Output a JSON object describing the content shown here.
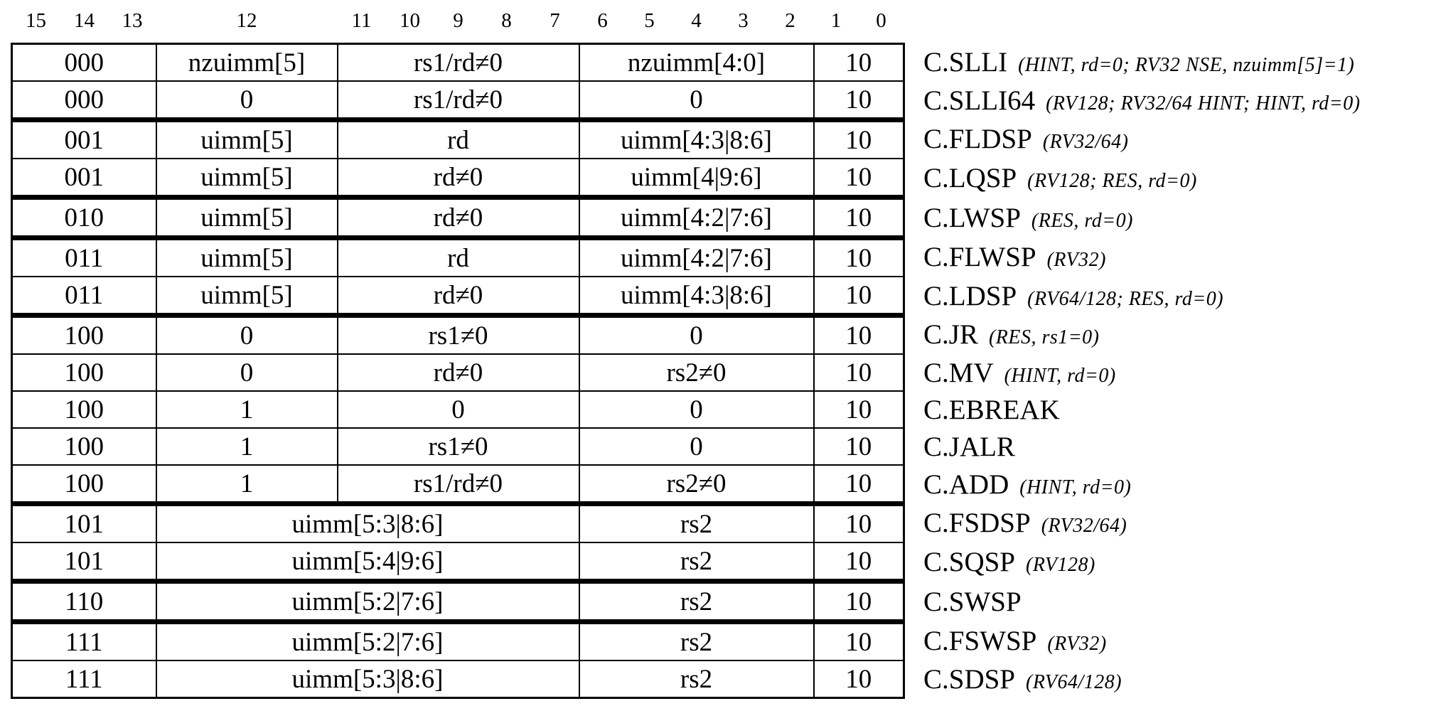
{
  "page": {
    "background": "#ffffff",
    "text_color": "#000000"
  },
  "bit_header": [
    "15",
    "14",
    "13",
    "12",
    "11",
    "10",
    "9",
    "8",
    "7",
    "6",
    "5",
    "4",
    "3",
    "2",
    "1",
    "0"
  ],
  "table": {
    "opcode_bits_label": "10",
    "rows": [
      {
        "thick_top": false,
        "cells": [
          {
            "span": 3,
            "text": "000"
          },
          {
            "span": 1,
            "text": "nzuimm[5]"
          },
          {
            "span": 5,
            "text": "rs1/rd≠0"
          },
          {
            "span": 5,
            "text": "nzuimm[4:0]"
          },
          {
            "span": 2,
            "text": "10"
          }
        ],
        "label": "C.SLLI",
        "note": "(HINT, rd=0; RV32 NSE, nzuimm[5]=1)"
      },
      {
        "thick_top": false,
        "cells": [
          {
            "span": 3,
            "text": "000"
          },
          {
            "span": 1,
            "text": "0"
          },
          {
            "span": 5,
            "text": "rs1/rd≠0"
          },
          {
            "span": 5,
            "text": "0"
          },
          {
            "span": 2,
            "text": "10"
          }
        ],
        "label": "C.SLLI64",
        "note": "(RV128; RV32/64 HINT; HINT, rd=0)"
      },
      {
        "thick_top": true,
        "cells": [
          {
            "span": 3,
            "text": "001"
          },
          {
            "span": 1,
            "text": "uimm[5]"
          },
          {
            "span": 5,
            "text": "rd"
          },
          {
            "span": 5,
            "text": "uimm[4:3|8:6]"
          },
          {
            "span": 2,
            "text": "10"
          }
        ],
        "label": "C.FLDSP",
        "note": "(RV32/64)"
      },
      {
        "thick_top": false,
        "cells": [
          {
            "span": 3,
            "text": "001"
          },
          {
            "span": 1,
            "text": "uimm[5]"
          },
          {
            "span": 5,
            "text": "rd≠0"
          },
          {
            "span": 5,
            "text": "uimm[4|9:6]"
          },
          {
            "span": 2,
            "text": "10"
          }
        ],
        "label": "C.LQSP",
        "note": "(RV128; RES, rd=0)"
      },
      {
        "thick_top": true,
        "cells": [
          {
            "span": 3,
            "text": "010"
          },
          {
            "span": 1,
            "text": "uimm[5]"
          },
          {
            "span": 5,
            "text": "rd≠0"
          },
          {
            "span": 5,
            "text": "uimm[4:2|7:6]"
          },
          {
            "span": 2,
            "text": "10"
          }
        ],
        "label": "C.LWSP",
        "note": "(RES, rd=0)"
      },
      {
        "thick_top": true,
        "cells": [
          {
            "span": 3,
            "text": "011"
          },
          {
            "span": 1,
            "text": "uimm[5]"
          },
          {
            "span": 5,
            "text": "rd"
          },
          {
            "span": 5,
            "text": "uimm[4:2|7:6]"
          },
          {
            "span": 2,
            "text": "10"
          }
        ],
        "label": "C.FLWSP",
        "note": "(RV32)"
      },
      {
        "thick_top": false,
        "cells": [
          {
            "span": 3,
            "text": "011"
          },
          {
            "span": 1,
            "text": "uimm[5]"
          },
          {
            "span": 5,
            "text": "rd≠0"
          },
          {
            "span": 5,
            "text": "uimm[4:3|8:6]"
          },
          {
            "span": 2,
            "text": "10"
          }
        ],
        "label": "C.LDSP",
        "note": "(RV64/128; RES, rd=0)"
      },
      {
        "thick_top": true,
        "cells": [
          {
            "span": 3,
            "text": "100"
          },
          {
            "span": 1,
            "text": "0"
          },
          {
            "span": 5,
            "text": "rs1≠0"
          },
          {
            "span": 5,
            "text": "0"
          },
          {
            "span": 2,
            "text": "10"
          }
        ],
        "label": "C.JR",
        "note": "(RES, rs1=0)"
      },
      {
        "thick_top": false,
        "cells": [
          {
            "span": 3,
            "text": "100"
          },
          {
            "span": 1,
            "text": "0"
          },
          {
            "span": 5,
            "text": "rd≠0"
          },
          {
            "span": 5,
            "text": "rs2≠0"
          },
          {
            "span": 2,
            "text": "10"
          }
        ],
        "label": "C.MV",
        "note": "(HINT, rd=0)"
      },
      {
        "thick_top": false,
        "cells": [
          {
            "span": 3,
            "text": "100"
          },
          {
            "span": 1,
            "text": "1"
          },
          {
            "span": 5,
            "text": "0"
          },
          {
            "span": 5,
            "text": "0"
          },
          {
            "span": 2,
            "text": "10"
          }
        ],
        "label": "C.EBREAK",
        "note": null
      },
      {
        "thick_top": false,
        "cells": [
          {
            "span": 3,
            "text": "100"
          },
          {
            "span": 1,
            "text": "1"
          },
          {
            "span": 5,
            "text": "rs1≠0"
          },
          {
            "span": 5,
            "text": "0"
          },
          {
            "span": 2,
            "text": "10"
          }
        ],
        "label": "C.JALR",
        "note": null
      },
      {
        "thick_top": false,
        "cells": [
          {
            "span": 3,
            "text": "100"
          },
          {
            "span": 1,
            "text": "1"
          },
          {
            "span": 5,
            "text": "rs1/rd≠0"
          },
          {
            "span": 5,
            "text": "rs2≠0"
          },
          {
            "span": 2,
            "text": "10"
          }
        ],
        "label": "C.ADD",
        "note": "(HINT, rd=0)"
      },
      {
        "thick_top": true,
        "cells": [
          {
            "span": 3,
            "text": "101"
          },
          {
            "span": 6,
            "text": "uimm[5:3|8:6]"
          },
          {
            "span": 5,
            "text": "rs2"
          },
          {
            "span": 2,
            "text": "10"
          }
        ],
        "label": "C.FSDSP",
        "note": "(RV32/64)"
      },
      {
        "thick_top": false,
        "cells": [
          {
            "span": 3,
            "text": "101"
          },
          {
            "span": 6,
            "text": "uimm[5:4|9:6]"
          },
          {
            "span": 5,
            "text": "rs2"
          },
          {
            "span": 2,
            "text": "10"
          }
        ],
        "label": "C.SQSP",
        "note": "(RV128)"
      },
      {
        "thick_top": true,
        "cells": [
          {
            "span": 3,
            "text": "110"
          },
          {
            "span": 6,
            "text": "uimm[5:2|7:6]"
          },
          {
            "span": 5,
            "text": "rs2"
          },
          {
            "span": 2,
            "text": "10"
          }
        ],
        "label": "C.SWSP",
        "note": null
      },
      {
        "thick_top": true,
        "cells": [
          {
            "span": 3,
            "text": "111"
          },
          {
            "span": 6,
            "text": "uimm[5:2|7:6]"
          },
          {
            "span": 5,
            "text": "rs2"
          },
          {
            "span": 2,
            "text": "10"
          }
        ],
        "label": "C.FSWSP",
        "note": "(RV32)"
      },
      {
        "thick_top": false,
        "cells": [
          {
            "span": 3,
            "text": "111"
          },
          {
            "span": 6,
            "text": "uimm[5:3|8:6]"
          },
          {
            "span": 5,
            "text": "rs2"
          },
          {
            "span": 2,
            "text": "10"
          }
        ],
        "label": "C.SDSP",
        "note": "(RV64/128)"
      }
    ]
  }
}
